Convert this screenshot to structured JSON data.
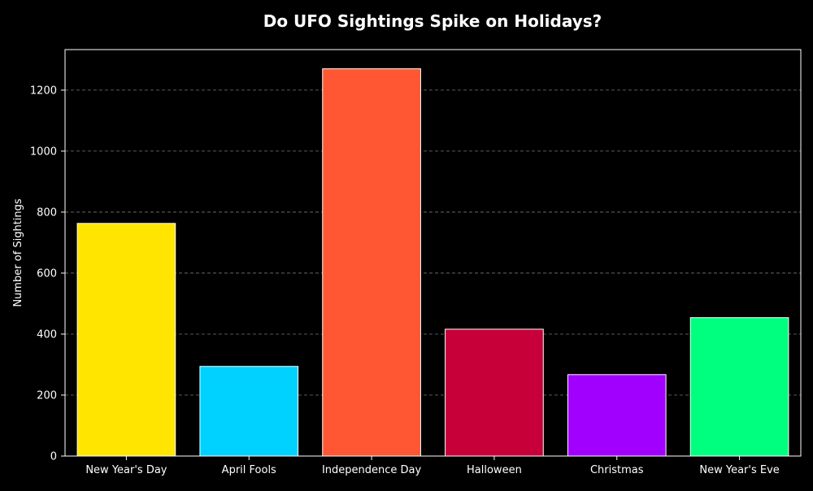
{
  "chart_data": {
    "type": "bar",
    "title": "Do UFO Sightings Spike on Holidays?",
    "xlabel": "",
    "ylabel": "Number of Sightings",
    "categories": [
      "New Year's Day",
      "April Fools",
      "Independence Day",
      "Halloween",
      "Christmas",
      "New Year's Eve"
    ],
    "values": [
      763,
      294,
      1270,
      416,
      267,
      454
    ],
    "colors": [
      "#FFE500",
      "#00D2FF",
      "#FF5733",
      "#C70039",
      "#A100FF",
      "#00FF7F"
    ],
    "yticks": [
      0,
      200,
      400,
      600,
      800,
      1000,
      1200
    ],
    "ylim": [
      0,
      1333
    ],
    "grid": true,
    "background": "#000000",
    "bar_edge_color": "#ffffff",
    "grid_color": "#777777"
  }
}
